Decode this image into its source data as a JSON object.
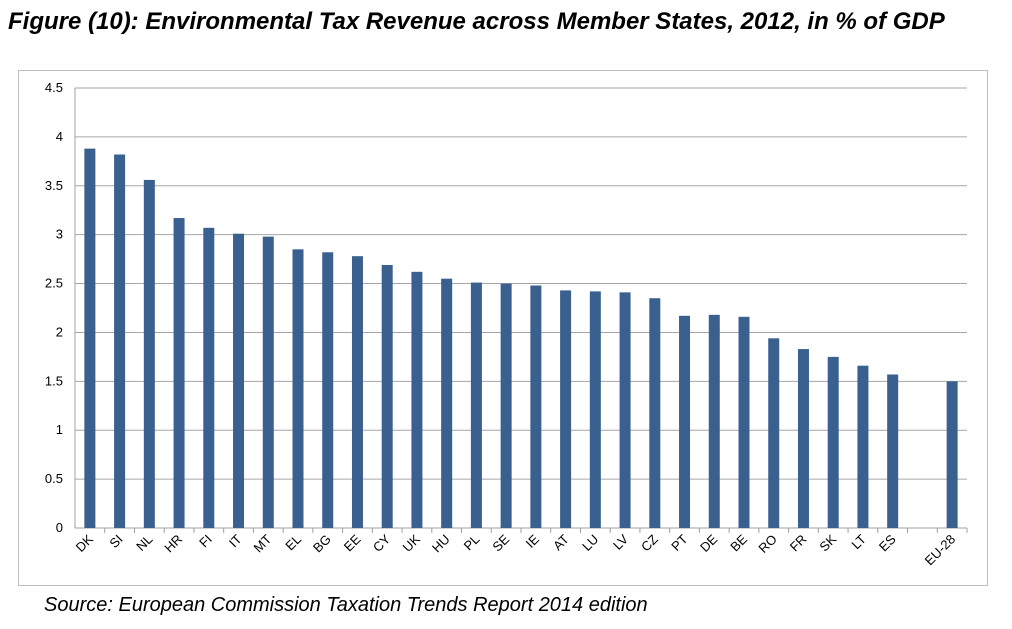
{
  "title": "Figure (10): Environmental Tax Revenue across Member States, 2012, in % of GDP",
  "source": "Source:  European Commission Taxation Trends Report 2014 edition",
  "chart_data": {
    "type": "bar",
    "title": "",
    "xlabel": "",
    "ylabel": "",
    "categories": [
      "DK",
      "SI",
      "NL",
      "HR",
      "FI",
      "IT",
      "MT",
      "EL",
      "BG",
      "EE",
      "CY",
      "UK",
      "HU",
      "PL",
      "SE",
      "IE",
      "AT",
      "LU",
      "LV",
      "CZ",
      "PT",
      "DE",
      "BE",
      "RO",
      "FR",
      "SK",
      "LT",
      "ES",
      "",
      "EU-28"
    ],
    "values": [
      3.88,
      3.82,
      3.56,
      3.17,
      3.07,
      3.01,
      2.98,
      2.85,
      2.82,
      2.78,
      2.69,
      2.62,
      2.55,
      2.51,
      2.5,
      2.48,
      2.43,
      2.42,
      2.41,
      2.35,
      2.17,
      2.18,
      2.16,
      1.94,
      1.83,
      1.75,
      1.66,
      1.57,
      null,
      1.5
    ],
    "ylim": [
      0,
      4.5
    ],
    "yticks": [
      "0",
      "0.5",
      "1",
      "1.5",
      "2",
      "2.5",
      "3",
      "3.5",
      "4",
      "4.5"
    ],
    "grid": true,
    "bar_color": "#3a6090"
  }
}
